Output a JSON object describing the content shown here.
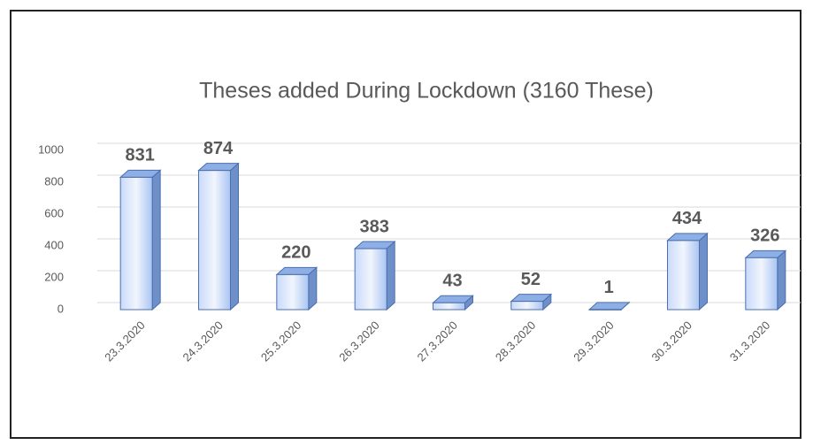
{
  "chart_data": {
    "type": "bar3d",
    "title": "Theses added During Lockdown (3160 These)",
    "categories": [
      "23.3.2020",
      "24.3.2020",
      "25.3.2020",
      "26.3.2020",
      "27.3.2020",
      "28.3.2020",
      "29.3.2020",
      "30.3.2020",
      "31.3.2020"
    ],
    "values": [
      831,
      874,
      220,
      383,
      43,
      52,
      1,
      434,
      326
    ],
    "color": "#a9c4f2",
    "ylim": [
      0,
      1000
    ],
    "yticks": [
      0,
      200,
      400,
      600,
      800,
      1000
    ],
    "grid": true
  }
}
